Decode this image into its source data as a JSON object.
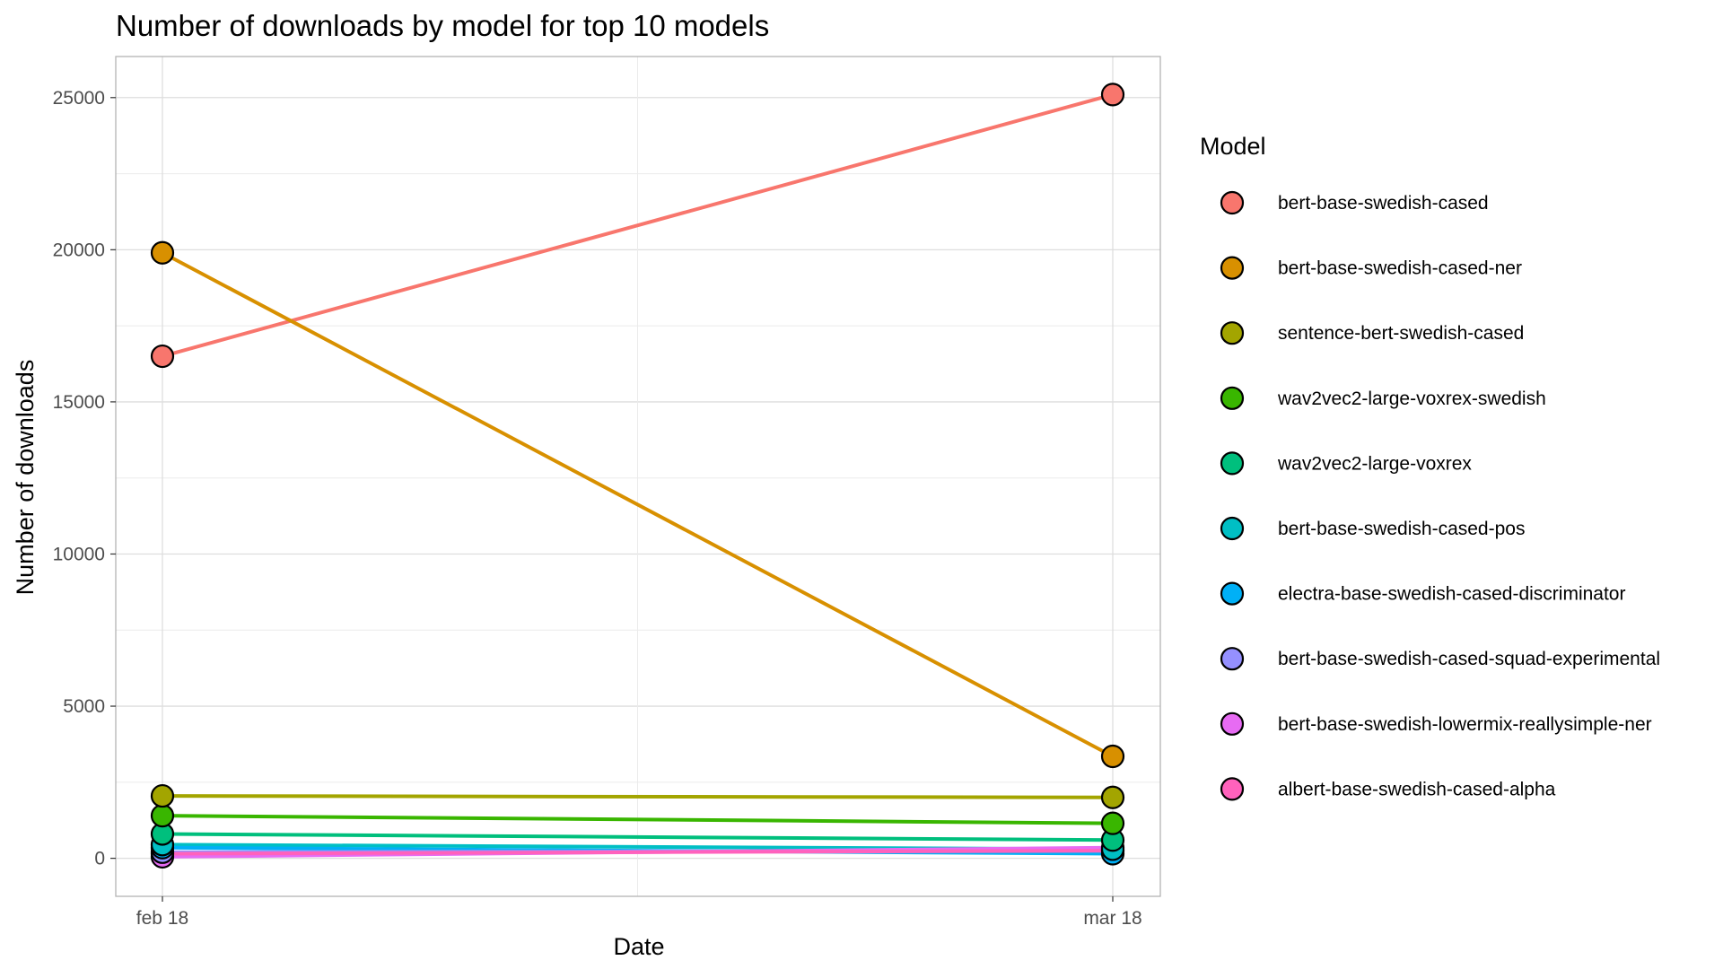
{
  "chart_data": {
    "type": "line",
    "title": "Number of downloads by model for top 10 models",
    "xlabel": "Date",
    "ylabel": "Number of downloads",
    "categories": [
      "feb 18",
      "mar 18"
    ],
    "ylim": [
      -1250,
      26350
    ],
    "yticks": [
      0,
      5000,
      10000,
      15000,
      20000,
      25000
    ],
    "grid": true,
    "legend_title": "Model",
    "legend_position": "right",
    "series": [
      {
        "name": "bert-base-swedish-cased",
        "color": "#F8766D",
        "values": [
          16500,
          25100
        ]
      },
      {
        "name": "bert-base-swedish-cased-ner",
        "color": "#D89000",
        "values": [
          19900,
          3350
        ]
      },
      {
        "name": "sentence-bert-swedish-cased",
        "color": "#A3A500",
        "values": [
          2050,
          2000
        ]
      },
      {
        "name": "wav2vec2-large-voxrex-swedish",
        "color": "#39B600",
        "values": [
          1400,
          1150
        ]
      },
      {
        "name": "wav2vec2-large-voxrex",
        "color": "#00BF7D",
        "values": [
          800,
          600
        ]
      },
      {
        "name": "bert-base-swedish-cased-pos",
        "color": "#00BFC4",
        "values": [
          450,
          300
        ]
      },
      {
        "name": "electra-base-swedish-cased-discriminator",
        "color": "#00B0F6",
        "values": [
          350,
          150
        ]
      },
      {
        "name": "bert-base-swedish-cased-squad-experimental",
        "color": "#9590FF",
        "values": [
          200,
          250
        ]
      },
      {
        "name": "bert-base-swedish-lowermix-reallysimple-ner",
        "color": "#E76BF3",
        "values": [
          50,
          350
        ]
      },
      {
        "name": "albert-base-swedish-cased-alpha",
        "color": "#FF62BC",
        "values": [
          150,
          250
        ]
      }
    ]
  }
}
